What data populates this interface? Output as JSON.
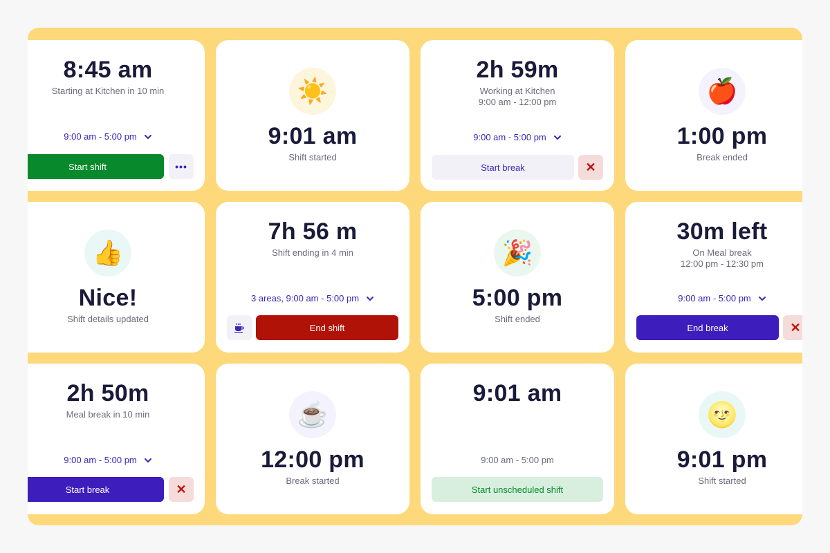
{
  "colors": {
    "board": "#fdd97c",
    "accent": "#3d24b8",
    "green": "#088a2c",
    "red": "#b01208",
    "purple": "#3d1dbb"
  },
  "cards": {
    "c1": {
      "time": "8:45 am",
      "status": "Starting at Kitchen in 10 min",
      "range": "9:00 am - 5:00 pm",
      "button": "Start shift",
      "more_icon": "ellipsis-icon"
    },
    "c2": {
      "emoji": "☀️",
      "time": "9:01 am",
      "status": "Shift started"
    },
    "c3": {
      "time": "2h 59m",
      "status": "Working at Kitchen",
      "status2": "9:00 am - 12:00 pm",
      "range": "9:00 am - 5:00 pm",
      "button": "Start break",
      "close_icon": "close-icon"
    },
    "c4": {
      "emoji": "🍎",
      "time": "1:00 pm",
      "status": "Break ended"
    },
    "c5": {
      "emoji": "👍",
      "time": "Nice!",
      "status": "Shift details updated"
    },
    "c6": {
      "time": "7h 56 m",
      "status": "Shift ending in 4 min",
      "range": "3 areas, 9:00 am - 5:00 pm",
      "button": "End shift",
      "cup_icon": "coffee-icon"
    },
    "c7": {
      "emoji": "🎉",
      "time": "5:00 pm",
      "status": "Shift ended"
    },
    "c8": {
      "time": "30m left",
      "status": "On Meal break",
      "status2": "12:00 pm - 12:30 pm",
      "range": "9:00 am - 5:00 pm",
      "button": "End break"
    },
    "c9": {
      "time": "2h 50m",
      "status": "Meal break in 10 min",
      "range": "9:00 am - 5:00 pm",
      "button": "Start break"
    },
    "c10": {
      "emoji": "☕",
      "time": "12:00 pm",
      "status": "Break started"
    },
    "c11": {
      "time": "9:01 am",
      "range": "9:00 am - 5:00 pm",
      "button": "Start unscheduled shift"
    },
    "c12": {
      "emoji": "🌝",
      "time": "9:01 pm",
      "status": "Shift started"
    }
  }
}
